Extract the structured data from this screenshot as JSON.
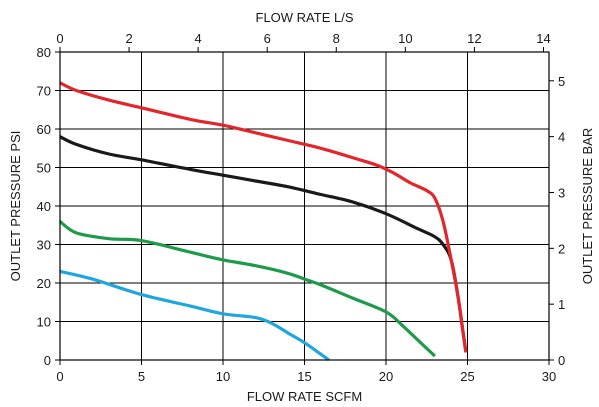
{
  "chart_data": {
    "type": "line",
    "title": "",
    "xlabel": "FLOW RATE SCFM",
    "ylabel": "OUTLET PRESSURE PSI",
    "x2label": "FLOW RATE L/S",
    "y2label": "OUTLET PRESSURE BAR",
    "xlim": [
      0,
      30
    ],
    "ylim": [
      0,
      80
    ],
    "x2lim": [
      0,
      14.16
    ],
    "y2lim": [
      0,
      5.516
    ],
    "x_ticks": [
      0,
      5,
      10,
      15,
      20,
      25,
      30
    ],
    "y_ticks": [
      0,
      10,
      20,
      30,
      40,
      50,
      60,
      70,
      80
    ],
    "x2_ticks": [
      0,
      2,
      4,
      6,
      8,
      10,
      12,
      14
    ],
    "y2_ticks": [
      0,
      1,
      2,
      3,
      4,
      5
    ],
    "grid": true,
    "series": [
      {
        "color": "#e3262b",
        "x": [
          0,
          1,
          3,
          5,
          8,
          10,
          12,
          14,
          16,
          18,
          19.5,
          20.5,
          21.5,
          22.5,
          23,
          23.5,
          24,
          24.4,
          24.7,
          24.9
        ],
        "y": [
          72,
          70,
          67.5,
          65.5,
          62.5,
          61,
          59,
          57,
          55,
          52.5,
          50.5,
          48.5,
          46,
          44,
          42,
          36,
          26,
          17,
          8,
          2
        ]
      },
      {
        "color": "#1a1a1a",
        "x": [
          0,
          1,
          3,
          5,
          8,
          10,
          12,
          14,
          16,
          18,
          20,
          22,
          23,
          23.5,
          24,
          24.4,
          24.7,
          24.9
        ],
        "y": [
          58,
          56,
          53.5,
          52,
          49.5,
          48,
          46.5,
          45,
          43,
          41,
          38,
          34,
          32,
          30,
          26,
          17,
          8,
          2
        ]
      },
      {
        "color": "#1e9b4a",
        "x": [
          0,
          1,
          3,
          5,
          8,
          10,
          12,
          14,
          15,
          16,
          18,
          20,
          21,
          22,
          23
        ],
        "y": [
          36,
          33,
          31.5,
          31,
          28,
          26,
          24.5,
          22.5,
          21,
          19.5,
          16,
          12.5,
          9,
          5,
          1
        ]
      },
      {
        "color": "#1fa6dd",
        "x": [
          0,
          2,
          5,
          8,
          10,
          12,
          13,
          14,
          15,
          16,
          16.5
        ],
        "y": [
          23,
          21,
          17,
          14,
          12,
          11,
          9.5,
          7,
          4.5,
          1.5,
          0
        ]
      }
    ]
  }
}
